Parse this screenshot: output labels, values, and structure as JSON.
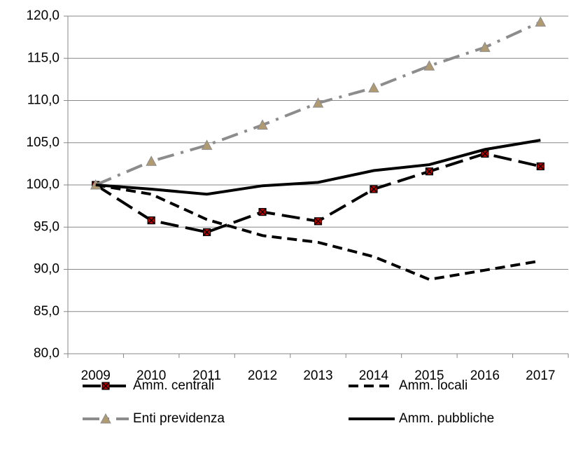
{
  "chart_data": {
    "type": "line",
    "categories": [
      "2009",
      "2010",
      "2011",
      "2012",
      "2013",
      "2014",
      "2015",
      "2016",
      "2017"
    ],
    "series": [
      {
        "name": "Amm. centrali",
        "color": "#000000",
        "style": "long-dash",
        "marker": "square-x",
        "marker_color": "#c00000",
        "values": [
          100,
          95.8,
          94.4,
          96.8,
          95.7,
          99.5,
          101.6,
          103.7,
          102.2
        ]
      },
      {
        "name": "Amm. locali",
        "color": "#000000",
        "style": "dash",
        "values": [
          100,
          98.9,
          95.9,
          94.0,
          93.2,
          91.5,
          88.8,
          89.9,
          91.0
        ]
      },
      {
        "name": "Enti previdenza",
        "color": "#8c8c8c",
        "style": "dash-dot",
        "marker": "triangle",
        "marker_color": "#b09a72",
        "values": [
          100,
          102.8,
          104.7,
          107.1,
          109.7,
          111.5,
          114.1,
          116.3,
          119.3
        ]
      },
      {
        "name": "Amm. pubbliche",
        "color": "#000000",
        "style": "solid",
        "values": [
          100,
          99.5,
          98.9,
          99.9,
          100.3,
          101.7,
          102.4,
          104.2,
          105.3
        ]
      }
    ],
    "ylim": [
      80,
      120
    ],
    "yticks": [
      {
        "value": 80,
        "label": "80,0"
      },
      {
        "value": 85,
        "label": "85,0"
      },
      {
        "value": 90,
        "label": "90,0"
      },
      {
        "value": 95,
        "label": "95,0"
      },
      {
        "value": 100,
        "label": "100,0"
      },
      {
        "value": 105,
        "label": "105,0"
      },
      {
        "value": 110,
        "label": "110,0"
      },
      {
        "value": 115,
        "label": "115,0"
      },
      {
        "value": 120,
        "label": "120,0"
      }
    ],
    "grid": true,
    "legend": "bottom"
  }
}
